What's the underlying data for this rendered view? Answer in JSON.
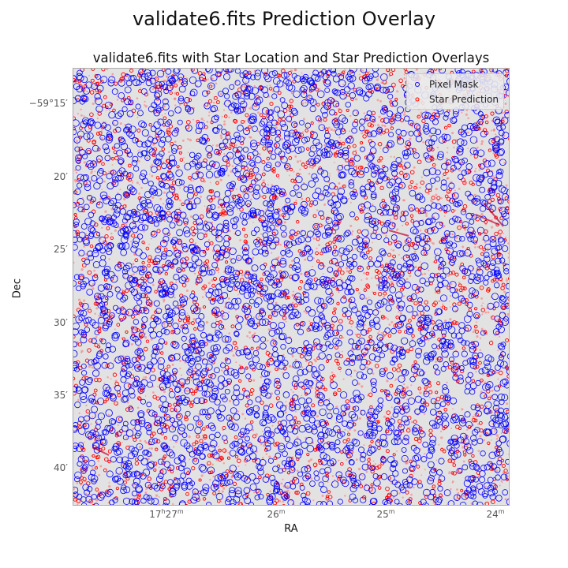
{
  "chart_data": {
    "type": "scatter",
    "suptitle": "validate6.fits Prediction Overlay",
    "title": "validate6.fits with Star Location and Star Prediction Overlays",
    "xlabel": "RA",
    "ylabel": "Dec",
    "x_ticks": [
      {
        "h": "17",
        "m": "27",
        "label": "17h27m"
      },
      {
        "m": "26",
        "label": "26m"
      },
      {
        "m": "25",
        "label": "25m"
      },
      {
        "m": "24",
        "label": "24m"
      }
    ],
    "y_ticks": [
      "−59°15′",
      "20′",
      "25′",
      "30′",
      "35′",
      "40′"
    ],
    "series": [
      {
        "name": "Pixel Mask",
        "marker": "open-circle",
        "color": "#0000ff",
        "approx_count": 3200
      },
      {
        "name": "Star Prediction",
        "marker": "small-open-circle",
        "color": "#ff0000",
        "approx_count": 3600
      }
    ],
    "xlim_minutes_RA": [
      27.6,
      23.9
    ],
    "ylim_arcmin_offset": [
      13.0,
      43.0
    ],
    "legend_location": "upper right",
    "grid": false
  },
  "colors": {
    "background": "#e2e2e2",
    "mask": "#0000ff",
    "prediction": "#ff0000"
  }
}
